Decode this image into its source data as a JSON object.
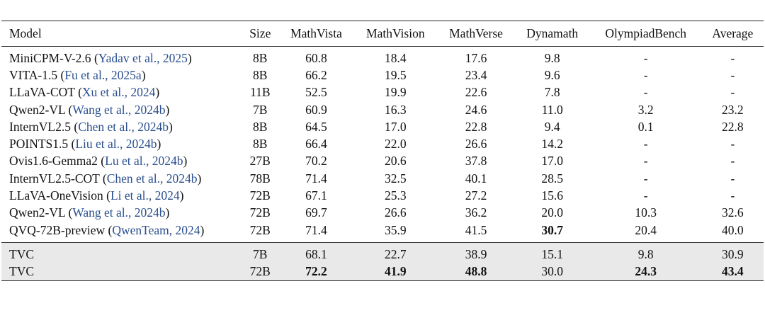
{
  "headers": [
    "Model",
    "Size",
    "MathVista",
    "MathVision",
    "MathVerse",
    "Dynamath",
    "OlympiadBench",
    "Average"
  ],
  "rows": [
    {
      "model": "MiniCPM-V-2.6",
      "cite": "Yadav et al., 2025",
      "size": "8B",
      "vals": [
        "60.8",
        "18.4",
        "17.6",
        "9.8",
        "-",
        "-"
      ],
      "bold": []
    },
    {
      "model": "VITA-1.5",
      "cite": "Fu et al., 2025a",
      "size": "8B",
      "vals": [
        "66.2",
        "19.5",
        "23.4",
        "9.6",
        "-",
        "-"
      ],
      "bold": []
    },
    {
      "model": "LLaVA-COT",
      "cite": "Xu et al., 2024",
      "size": "11B",
      "vals": [
        "52.5",
        "19.9",
        "22.6",
        "7.8",
        "-",
        "-"
      ],
      "bold": []
    },
    {
      "model": "Qwen2-VL",
      "cite": "Wang et al., 2024b",
      "size": "7B",
      "vals": [
        "60.9",
        "16.3",
        "24.6",
        "11.0",
        "3.2",
        "23.2"
      ],
      "bold": []
    },
    {
      "model": "InternVL2.5",
      "cite": "Chen et al., 2024b",
      "size": "8B",
      "vals": [
        "64.5",
        "17.0",
        "22.8",
        "9.4",
        "0.1",
        "22.8"
      ],
      "bold": []
    },
    {
      "model": "POINTS1.5",
      "cite": "Liu et al., 2024b",
      "size": "8B",
      "vals": [
        "66.4",
        "22.0",
        "26.6",
        "14.2",
        "-",
        "-"
      ],
      "bold": []
    },
    {
      "model": "Ovis1.6-Gemma2",
      "cite": "Lu et al., 2024b",
      "size": "27B",
      "vals": [
        "70.2",
        "20.6",
        "37.8",
        "17.0",
        "-",
        "-"
      ],
      "bold": []
    },
    {
      "model": "InternVL2.5-COT",
      "cite": "Chen et al., 2024b",
      "size": "78B",
      "vals": [
        "71.4",
        "32.5",
        "40.1",
        "28.5",
        "-",
        "-"
      ],
      "bold": []
    },
    {
      "model": "LLaVA-OneVision",
      "cite": "Li et al., 2024",
      "size": "72B",
      "vals": [
        "67.1",
        "25.3",
        "27.2",
        "15.6",
        "-",
        "-"
      ],
      "bold": []
    },
    {
      "model": "Qwen2-VL",
      "cite": "Wang et al., 2024b",
      "size": "72B",
      "vals": [
        "69.7",
        "26.6",
        "36.2",
        "20.0",
        "10.3",
        "32.6"
      ],
      "bold": []
    },
    {
      "model": "QVQ-72B-preview",
      "cite": "QwenTeam, 2024",
      "size": "72B",
      "vals": [
        "71.4",
        "35.9",
        "41.5",
        "30.7",
        "20.4",
        "40.0"
      ],
      "bold": [
        3
      ]
    }
  ],
  "tvc_rows": [
    {
      "model": "TVC",
      "cite": "",
      "size": "7B",
      "vals": [
        "68.1",
        "22.7",
        "38.9",
        "15.1",
        "9.8",
        "30.9"
      ],
      "bold": []
    },
    {
      "model": "TVC",
      "cite": "",
      "size": "72B",
      "vals": [
        "72.2",
        "41.9",
        "48.8",
        "30.0",
        "24.3",
        "43.4"
      ],
      "bold": [
        0,
        1,
        2,
        4,
        5
      ]
    }
  ]
}
